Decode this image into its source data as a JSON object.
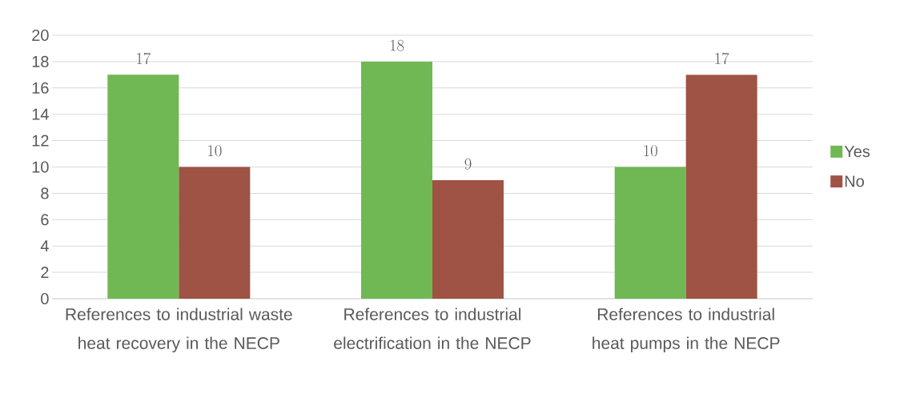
{
  "chart_data": {
    "type": "bar",
    "categories": [
      "References to industrial waste heat recovery in the NECP",
      "References to industrial electrification in the NECP",
      "References to industrial heat pumps in the NECP"
    ],
    "series": [
      {
        "name": "Yes",
        "color": "#70b853",
        "values": [
          17,
          18,
          10
        ]
      },
      {
        "name": "No",
        "color": "#9e5344",
        "values": [
          10,
          9,
          17
        ]
      }
    ],
    "ylim": [
      0,
      20
    ],
    "yticks": [
      0,
      2,
      4,
      6,
      8,
      10,
      12,
      14,
      16,
      18,
      20
    ],
    "grid": "y",
    "legend": "right",
    "data_labels": true
  }
}
